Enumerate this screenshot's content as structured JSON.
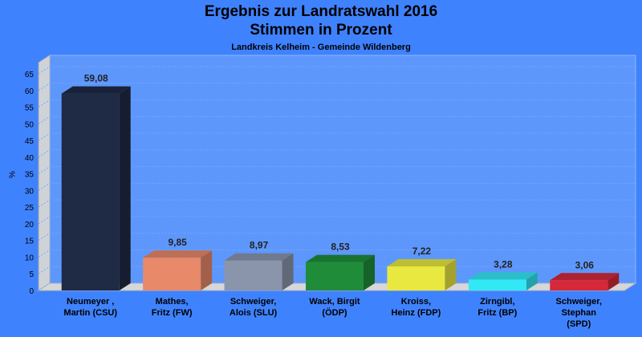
{
  "chart_data": {
    "type": "bar",
    "title": "Ergebnis zur Landratswahl 2016",
    "subtitle": "Stimmen in Prozent",
    "subsubtitle": "Landkreis Kelheim - Gemeinde Wildenberg",
    "ylabel": "%",
    "ylim": [
      0,
      65
    ],
    "yticks": [
      0,
      5,
      10,
      15,
      20,
      25,
      30,
      35,
      40,
      45,
      50,
      55,
      60,
      65
    ],
    "grid": true,
    "categories": [
      [
        "Neumeyer ,",
        "Martin (CSU)"
      ],
      [
        "Mathes,",
        "Fritz (FW)"
      ],
      [
        "Schweiger,",
        "Alois (SLU)"
      ],
      [
        "Wack, Birgit",
        "(ÖDP)"
      ],
      [
        "Kroiss,",
        "Heinz (FDP)"
      ],
      [
        "Zirngibl,",
        "Fritz (BP)"
      ],
      [
        "Schweiger,",
        "Stephan",
        "(SPD)"
      ]
    ],
    "values": [
      59.08,
      9.85,
      8.97,
      8.53,
      7.22,
      3.28,
      3.06
    ],
    "value_labels": [
      "59,08",
      "9,85",
      "8,97",
      "8,53",
      "7,22",
      "3,28",
      "3,06"
    ],
    "colors": [
      "#1f2a44",
      "#e8896a",
      "#8a94ab",
      "#1f8c3a",
      "#e8e840",
      "#33e8f5",
      "#d62838"
    ]
  }
}
